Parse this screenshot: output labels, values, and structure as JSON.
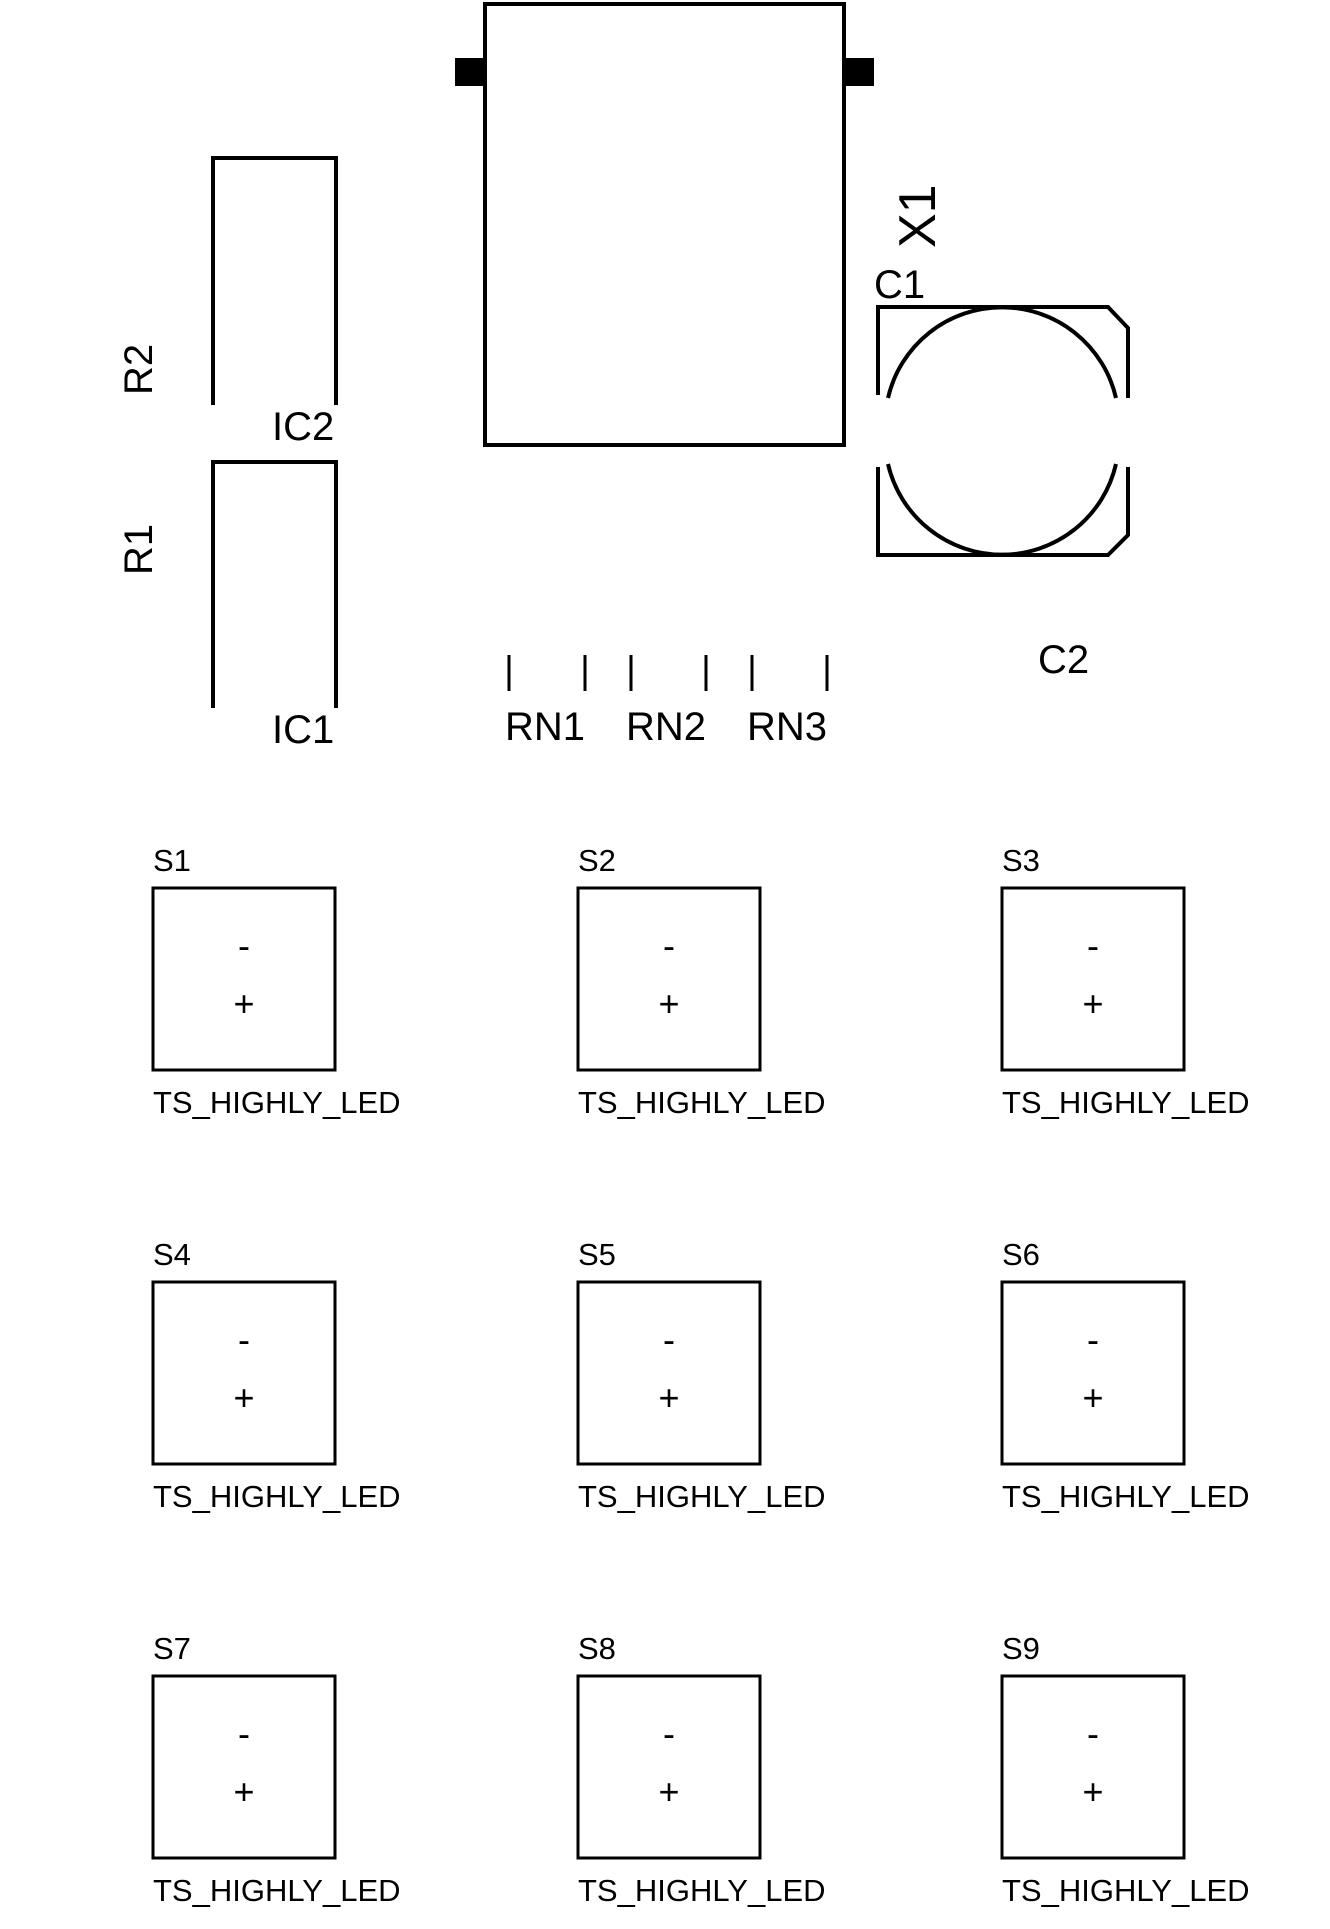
{
  "components": {
    "x1": "X1",
    "c1": "C1",
    "c2": "C2",
    "r1": "R1",
    "r2": "R2",
    "ic1": "IC1",
    "ic2": "IC2",
    "rn1": "RN1",
    "rn2": "RN2",
    "rn3": "RN3"
  },
  "leds": [
    {
      "ref": "S1",
      "value": "TS_HIGHLY_LED",
      "minus": "-",
      "plus": "+"
    },
    {
      "ref": "S2",
      "value": "TS_HIGHLY_LED",
      "minus": "-",
      "plus": "+"
    },
    {
      "ref": "S3",
      "value": "TS_HIGHLY_LED",
      "minus": "-",
      "plus": "+"
    },
    {
      "ref": "S4",
      "value": "TS_HIGHLY_LED",
      "minus": "-",
      "plus": "+"
    },
    {
      "ref": "S5",
      "value": "TS_HIGHLY_LED",
      "minus": "-",
      "plus": "+"
    },
    {
      "ref": "S6",
      "value": "TS_HIGHLY_LED",
      "minus": "-",
      "plus": "+"
    },
    {
      "ref": "S7",
      "value": "TS_HIGHLY_LED",
      "minus": "-",
      "plus": "+"
    },
    {
      "ref": "S8",
      "value": "TS_HIGHLY_LED",
      "minus": "-",
      "plus": "+"
    },
    {
      "ref": "S9",
      "value": "TS_HIGHLY_LED",
      "minus": "-",
      "plus": "+"
    }
  ]
}
